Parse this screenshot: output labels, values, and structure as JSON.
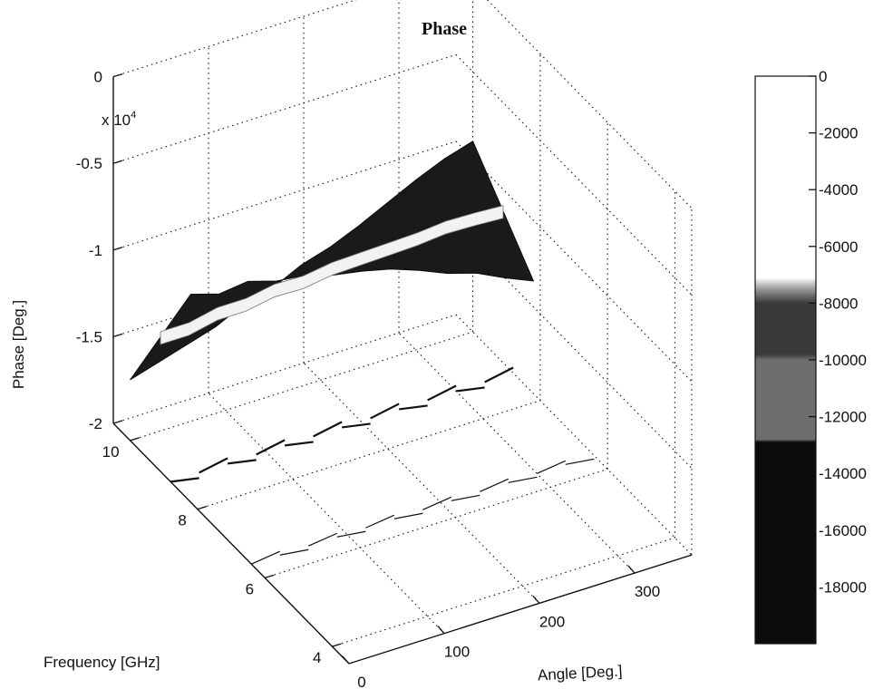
{
  "chart_data": {
    "type": "surface",
    "title": "Phase",
    "exponent_label": "x 10",
    "exponent_power": "4",
    "xlabel": "Angle [Deg.]",
    "ylabel": "Frequency [GHz]",
    "zlabel": "Phase [Deg.]",
    "x_ticks": [
      "0",
      "100",
      "200",
      "300"
    ],
    "y_ticks": [
      "4",
      "6",
      "8",
      "10"
    ],
    "z_ticks": [
      "0",
      "-0.5",
      "-1",
      "-1.5",
      "-2"
    ],
    "x_range": [
      0,
      360
    ],
    "y_range": [
      3.5,
      10.5
    ],
    "z_range": [
      -20000,
      0
    ],
    "grid": true,
    "surface_profile": {
      "angle": [
        0,
        30,
        60,
        90,
        120,
        150,
        180,
        210,
        240,
        270,
        300,
        330,
        360
      ],
      "phase_low_freq": [
        -8000,
        -8500,
        -8300,
        -8800,
        -9000,
        -9500,
        -9800,
        -10200,
        -10800,
        -11500,
        -12000,
        -12800,
        -13500
      ],
      "phase_high_freq": [
        -16500,
        -16000,
        -15500,
        -15000,
        -14200,
        -13800,
        -13000,
        -12500,
        -11800,
        -11000,
        -10200,
        -9500,
        -9000
      ]
    },
    "colorbar": {
      "ticks": [
        "0",
        "-2000",
        "-4000",
        "-6000",
        "-8000",
        "-10000",
        "-12000",
        "-14000",
        "-16000",
        "-18000"
      ],
      "range": [
        -20000,
        0
      ],
      "colors": [
        "#ffffff",
        "#3a3a3a",
        "#6e6e6e",
        "#0c0c0c"
      ]
    }
  }
}
